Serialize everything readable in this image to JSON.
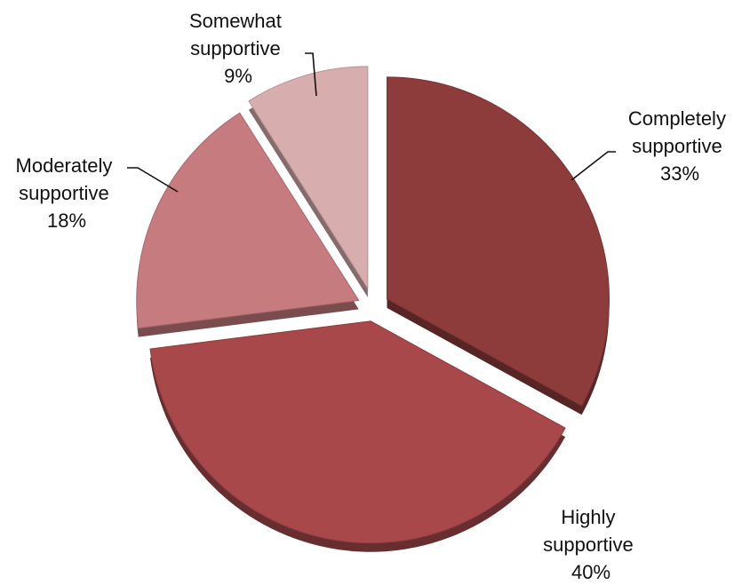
{
  "chart_data": {
    "type": "pie",
    "style": "3d-exploded",
    "title": "",
    "slices": [
      {
        "name": "Completely supportive",
        "value": 33,
        "label": "33%",
        "color": "#8e3b3c"
      },
      {
        "name": "Highly supportive",
        "value": 40,
        "label": "40%",
        "color": "#a8484b"
      },
      {
        "name": "Moderately supportive",
        "value": 18,
        "label": "18%",
        "color": "#c67b7e"
      },
      {
        "name": "Somewhat supportive",
        "value": 9,
        "label": "9%",
        "color": "#d7adae"
      }
    ]
  },
  "labels": {
    "completely": {
      "line1": "Completely",
      "line2": "supportive",
      "pct": "33%"
    },
    "highly": {
      "line1": "Highly",
      "line2": "supportive",
      "pct": "40%"
    },
    "moderately": {
      "line1": "Moderately",
      "line2": "supportive",
      "pct": "18%"
    },
    "somewhat": {
      "line1": "Somewhat",
      "line2": "supportive",
      "pct": "9%"
    }
  }
}
